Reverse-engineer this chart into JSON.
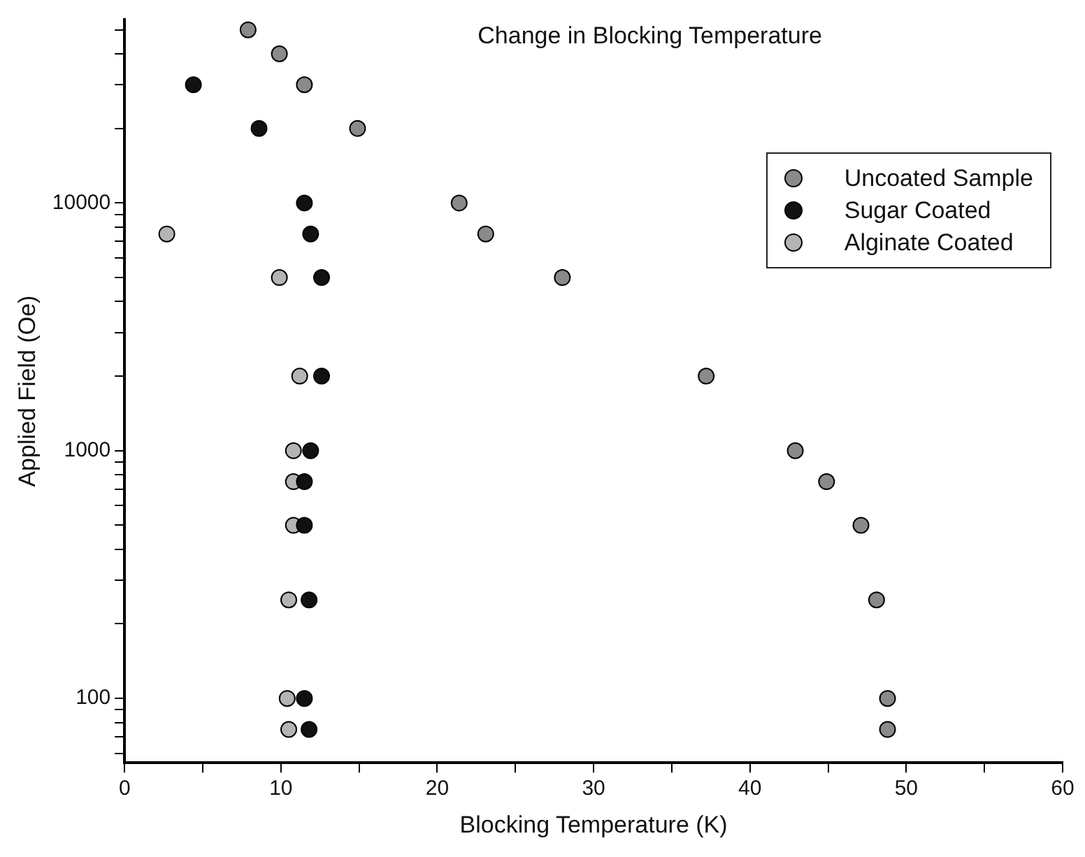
{
  "chart_data": {
    "type": "scatter",
    "title": "Change in Blocking Temperature",
    "xlabel": "Blocking Temperature (K)",
    "ylabel": "Applied Field (Oe)",
    "log": "y",
    "grid": false,
    "legend": "top right",
    "marker": "circle",
    "xlim": [
      0,
      60
    ],
    "xticks": [
      0,
      {
        "value": 5,
        "label": null
      },
      10,
      {
        "value": 15,
        "label": null
      },
      20,
      {
        "value": 25,
        "label": null
      },
      30,
      {
        "value": 35,
        "label": null
      },
      40,
      {
        "value": 45,
        "label": null
      },
      50,
      {
        "value": 55,
        "label": null
      },
      60
    ],
    "ylim": [
      55,
      55000
    ],
    "yticks": [
      {
        "value": 60,
        "label": null
      },
      {
        "value": 70,
        "label": null
      },
      {
        "value": 80,
        "label": null
      },
      {
        "value": 90,
        "label": null
      },
      100,
      {
        "value": 200,
        "label": null
      },
      {
        "value": 300,
        "label": null
      },
      {
        "value": 400,
        "label": null
      },
      {
        "value": 500,
        "label": null
      },
      {
        "value": 600,
        "label": null
      },
      {
        "value": 700,
        "label": null
      },
      {
        "value": 800,
        "label": null
      },
      {
        "value": 900,
        "label": null
      },
      1000,
      {
        "value": 2000,
        "label": null
      },
      {
        "value": 3000,
        "label": null
      },
      {
        "value": 4000,
        "label": null
      },
      {
        "value": 5000,
        "label": null
      },
      {
        "value": 6000,
        "label": null
      },
      {
        "value": 7000,
        "label": null
      },
      {
        "value": 8000,
        "label": null
      },
      {
        "value": 9000,
        "label": null
      },
      10000,
      {
        "value": 20000,
        "label": null
      },
      {
        "value": 30000,
        "label": null
      },
      {
        "value": 40000,
        "label": null
      },
      {
        "value": 50000,
        "label": null
      }
    ],
    "series": [
      {
        "name": "Uncoated Sample",
        "color": "#8a8a8a",
        "x": [
          7.9,
          9.9,
          11.5,
          14.9,
          21.4,
          23.1,
          28.0,
          37.2,
          42.9,
          44.9,
          47.1,
          48.1,
          48.8,
          48.8
        ],
        "values": [
          50000,
          40000,
          30000,
          20000,
          10000,
          7500,
          5000,
          2000,
          1000,
          750,
          500,
          250,
          100,
          75
        ]
      },
      {
        "name": "Sugar Coated",
        "color": "#111111",
        "x": [
          4.4,
          8.6,
          11.5,
          11.9,
          12.6,
          12.6,
          11.9,
          11.5,
          11.5,
          11.8,
          11.5,
          11.8
        ],
        "values": [
          30000,
          20000,
          10000,
          7500,
          5000,
          2000,
          1000,
          750,
          500,
          250,
          100,
          75
        ]
      },
      {
        "name": "Alginate Coated",
        "color": "#b4b4b4",
        "x": [
          2.7,
          9.9,
          11.2,
          10.8,
          10.8,
          10.8,
          10.5,
          10.4,
          10.5
        ],
        "values": [
          7500,
          5000,
          2000,
          1000,
          750,
          500,
          250,
          100,
          75
        ]
      }
    ]
  }
}
